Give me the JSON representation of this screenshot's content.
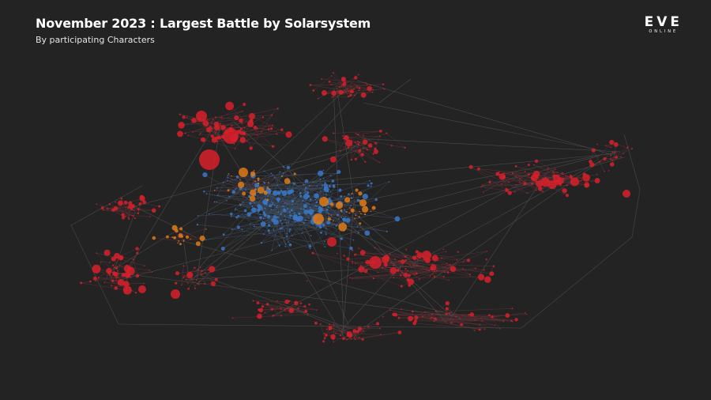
{
  "header": {
    "title": "November 2023 : Largest Battle by Solarsystem",
    "subtitle": "By participating Characters"
  },
  "logo": {
    "name": "EVE",
    "tagline": "ONLINE"
  }
}
